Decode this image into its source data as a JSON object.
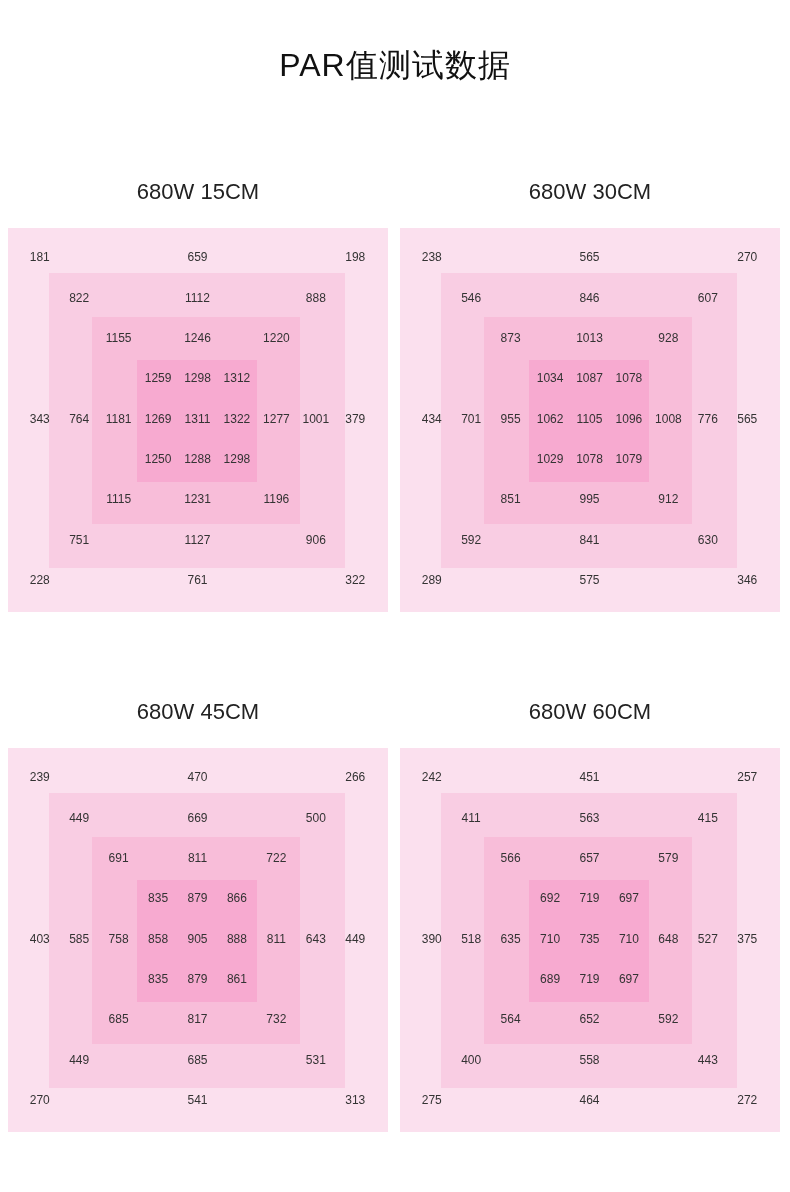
{
  "chart_data": [
    {
      "type": "other",
      "title": "680W 15CM",
      "annotations": [
        "PAR值测试数据"
      ],
      "data_labels": true,
      "values": [
        181,
        659,
        198,
        822,
        1112,
        888,
        1155,
        1246,
        1220,
        1259,
        1298,
        1312,
        343,
        764,
        1181,
        1269,
        1311,
        1322,
        1277,
        1001,
        379,
        1250,
        1288,
        1298,
        1115,
        1231,
        1196,
        751,
        1127,
        906,
        228,
        761,
        322
      ]
    },
    {
      "type": "other",
      "title": "680W 30CM",
      "data_labels": true,
      "values": [
        238,
        565,
        270,
        546,
        846,
        607,
        873,
        1013,
        928,
        1034,
        1087,
        1078,
        434,
        701,
        955,
        1062,
        1105,
        1096,
        1008,
        776,
        565,
        1029,
        1078,
        1079,
        851,
        995,
        912,
        592,
        841,
        630,
        289,
        575,
        346
      ]
    },
    {
      "type": "other",
      "title": "680W 45CM",
      "data_labels": true,
      "values": [
        239,
        470,
        266,
        449,
        669,
        500,
        691,
        811,
        722,
        835,
        879,
        866,
        403,
        585,
        758,
        858,
        905,
        888,
        811,
        643,
        449,
        835,
        879,
        861,
        685,
        817,
        732,
        449,
        685,
        531,
        270,
        541,
        313
      ]
    },
    {
      "type": "other",
      "title": "680W 60CM",
      "data_labels": true,
      "values": [
        242,
        451,
        257,
        411,
        563,
        415,
        566,
        657,
        579,
        692,
        719,
        697,
        390,
        518,
        635,
        710,
        735,
        710,
        648,
        527,
        375,
        689,
        719,
        697,
        564,
        652,
        592,
        400,
        558,
        443,
        275,
        464,
        272
      ]
    }
  ]
}
